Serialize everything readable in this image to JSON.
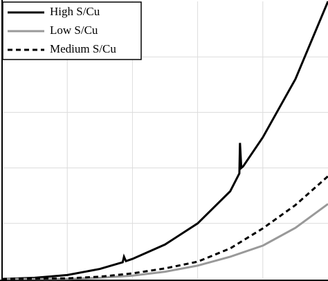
{
  "chart_data": {
    "type": "line",
    "series": [
      {
        "name": "High S/Cu",
        "color": "#000000",
        "line_style": "solid",
        "x": [
          0,
          0.5,
          1,
          1.5,
          1.85,
          1.87,
          1.9,
          2,
          2.5,
          3,
          3.5,
          3.64,
          3.65,
          3.67,
          3.7,
          4,
          4.5,
          5
        ],
        "values": [
          0,
          0.02,
          0.07,
          0.18,
          0.3,
          0.4,
          0.32,
          0.36,
          0.62,
          1.0,
          1.58,
          1.9,
          2.45,
          2.0,
          2.03,
          2.55,
          3.6,
          5.0
        ]
      },
      {
        "name": "Low S/Cu",
        "color": "#999999",
        "line_style": "solid",
        "x": [
          0,
          1,
          1.5,
          2,
          2.5,
          3,
          3.5,
          4,
          4.5,
          5
        ],
        "values": [
          0,
          0,
          0.02,
          0.06,
          0.13,
          0.24,
          0.4,
          0.6,
          0.92,
          1.35
        ]
      },
      {
        "name": "Medium S/Cu",
        "color": "#000000",
        "line_style": "dashed",
        "x": [
          0,
          1,
          1.5,
          2,
          2.5,
          3,
          3.5,
          4,
          4.5,
          5
        ],
        "values": [
          0,
          0.01,
          0.04,
          0.1,
          0.19,
          0.31,
          0.55,
          0.91,
          1.33,
          1.85
        ]
      }
    ],
    "xlim": [
      0,
      5
    ],
    "xticks": [
      1,
      2,
      3,
      4
    ],
    "ylim": [
      0,
      5
    ],
    "yticks": [
      1,
      2,
      3,
      4
    ],
    "grid": true,
    "legend": "upper-left"
  }
}
